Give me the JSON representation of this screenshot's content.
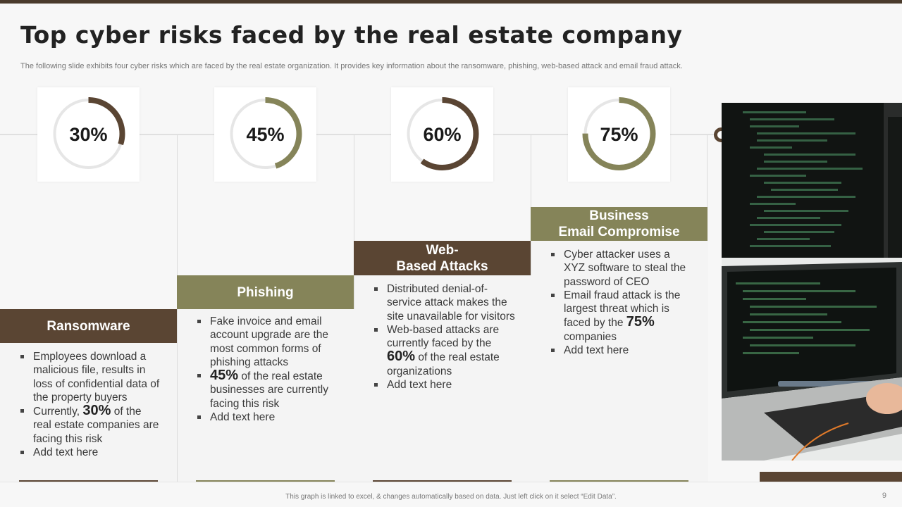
{
  "title": "Top cyber risks faced by the real estate company",
  "subtitle": "The following slide exhibits four cyber risks which are faced by the real estate organization. It provides key information about the ransomware, phishing, web-based attack and email fraud attack.",
  "colors": {
    "brown": "#5a4533",
    "olive": "#858459",
    "track": "#e6e6e6"
  },
  "steps": [
    {
      "percent_label": "30%",
      "percent": 30,
      "color": "brown",
      "header": "Ransomware",
      "bullets": [
        {
          "text": "Employees download a malicious file, results in loss of confidential data of the property buyers"
        },
        {
          "pre": "Currently,",
          "big": "30%",
          "post": "of the real estate companies are facing this risk"
        },
        {
          "text": "Add text here"
        }
      ]
    },
    {
      "percent_label": "45%",
      "percent": 45,
      "color": "olive",
      "header": "Phishing",
      "bullets": [
        {
          "text": "Fake invoice and email account upgrade are the most common forms of phishing attacks"
        },
        {
          "big": "45%",
          "post": "of the real estate businesses are currently facing this risk"
        },
        {
          "text": "Add text here"
        }
      ]
    },
    {
      "percent_label": "60%",
      "percent": 60,
      "color": "brown",
      "header": "Web-\nBased Attacks",
      "bullets": [
        {
          "text": "Distributed denial-of-service attack makes the site unavailable for visitors"
        },
        {
          "pre": "Web-based attacks are currently faced by the",
          "big": "60%",
          "post": "of the real estate organizations"
        },
        {
          "text": "Add text here"
        }
      ]
    },
    {
      "percent_label": "75%",
      "percent": 75,
      "color": "olive",
      "header": "Business\nEmail Compromise",
      "bullets": [
        {
          "text": "Cyber attacker uses a XYZ software to steal the password of CEO"
        },
        {
          "pre": "Email fraud attack is the largest threat which is faced by the",
          "big": "75%",
          "post": "companies"
        },
        {
          "text": "Add text here"
        }
      ]
    }
  ],
  "footer": "This graph is linked to excel, & changes automatically based on data. Just left click on it select “Edit Data”.",
  "page_number": "9"
}
